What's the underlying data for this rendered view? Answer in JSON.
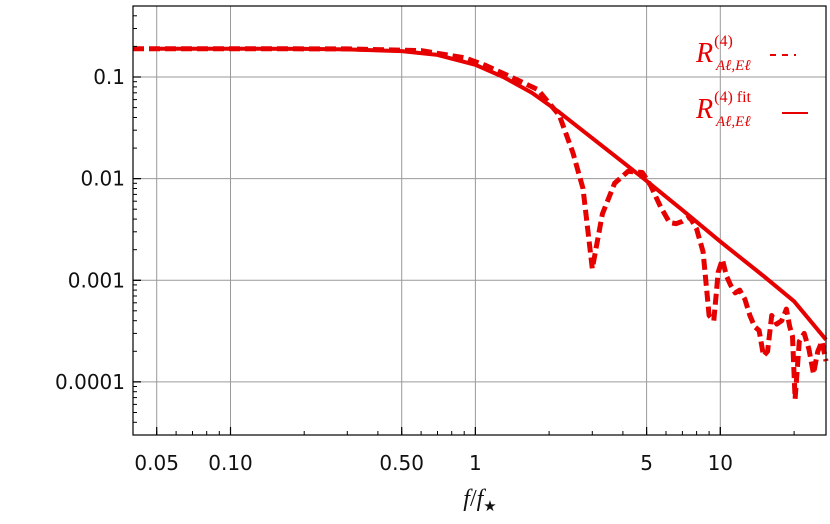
{
  "chart_data": {
    "type": "line",
    "title": "",
    "xlabel": "f/f★",
    "xlabel_parts": {
      "numerator": "f",
      "slash": "/",
      "denominator": "f",
      "subscript": "★"
    },
    "ylabel": "",
    "x_scale": "log",
    "y_scale": "log",
    "xlim": [
      0.04,
      27
    ],
    "ylim": [
      3e-05,
      0.5
    ],
    "x_ticks": [
      0.05,
      0.1,
      0.5,
      1,
      5,
      10
    ],
    "x_tick_labels": [
      "0.05",
      "0.10",
      "0.50",
      "1",
      "5",
      "10"
    ],
    "y_ticks": [
      0.1,
      0.01,
      0.001,
      0.0001
    ],
    "y_tick_labels": [
      "0.1",
      "0.01",
      "0.001",
      "0.0001"
    ],
    "grid": true,
    "legend_position": "top-right",
    "legend": [
      {
        "main": "R",
        "superscript": "(4)",
        "subscript": "Aℓ,Eℓ",
        "style": "dashed"
      },
      {
        "main": "R",
        "superscript": "(4) fit",
        "subscript": "Aℓ,Eℓ",
        "style": "solid"
      }
    ],
    "series": [
      {
        "style": "dashed",
        "color": "#e60000",
        "x": [
          0.04,
          0.1,
          0.3,
          0.6,
          0.9,
          1.1,
          1.4,
          1.8,
          2.2,
          2.5,
          2.75,
          3.0,
          3.3,
          3.7,
          4.2,
          4.8,
          5.2,
          5.7,
          6.2,
          6.6,
          7.0,
          7.5,
          8.0,
          8.5,
          9.0,
          9.4,
          9.8,
          10.2,
          10.6,
          11.0,
          11.5,
          12.0,
          12.6,
          13.2,
          13.8,
          14.4,
          15.0,
          15.6,
          16.2,
          17.0,
          17.8,
          18.6,
          19.2,
          19.7,
          20.2,
          21.0,
          22.0,
          23.0,
          24.0,
          25.0,
          26.0,
          27.0
        ],
        "y": [
          0.19,
          0.19,
          0.189,
          0.182,
          0.155,
          0.13,
          0.1,
          0.075,
          0.042,
          0.018,
          0.008,
          0.0013,
          0.0045,
          0.009,
          0.0118,
          0.0115,
          0.0085,
          0.0053,
          0.0037,
          0.0036,
          0.0038,
          0.0042,
          0.0032,
          0.0019,
          0.00045,
          0.0004,
          0.0012,
          0.0016,
          0.0011,
          0.0009,
          0.00075,
          0.0008,
          0.00065,
          0.00045,
          0.00035,
          0.00032,
          0.00018,
          0.0002,
          0.00045,
          0.00037,
          0.0004,
          0.00052,
          0.00035,
          0.00028,
          6.8e-05,
          0.00025,
          0.0003,
          0.00021,
          0.00012,
          0.0002,
          0.00025,
          0.00016
        ]
      },
      {
        "style": "solid",
        "color": "#e60000",
        "x": [
          0.05,
          0.1,
          0.2,
          0.3,
          0.5,
          0.7,
          1.0,
          1.3,
          1.7,
          2.2,
          3.0,
          4.0,
          5.0,
          7.0,
          10.0,
          15.0,
          20.0,
          27.0
        ],
        "y": [
          0.19,
          0.19,
          0.189,
          0.187,
          0.18,
          0.165,
          0.132,
          0.1,
          0.07,
          0.045,
          0.025,
          0.0145,
          0.0095,
          0.0049,
          0.0024,
          0.0011,
          0.00062,
          0.00026
        ]
      }
    ]
  }
}
